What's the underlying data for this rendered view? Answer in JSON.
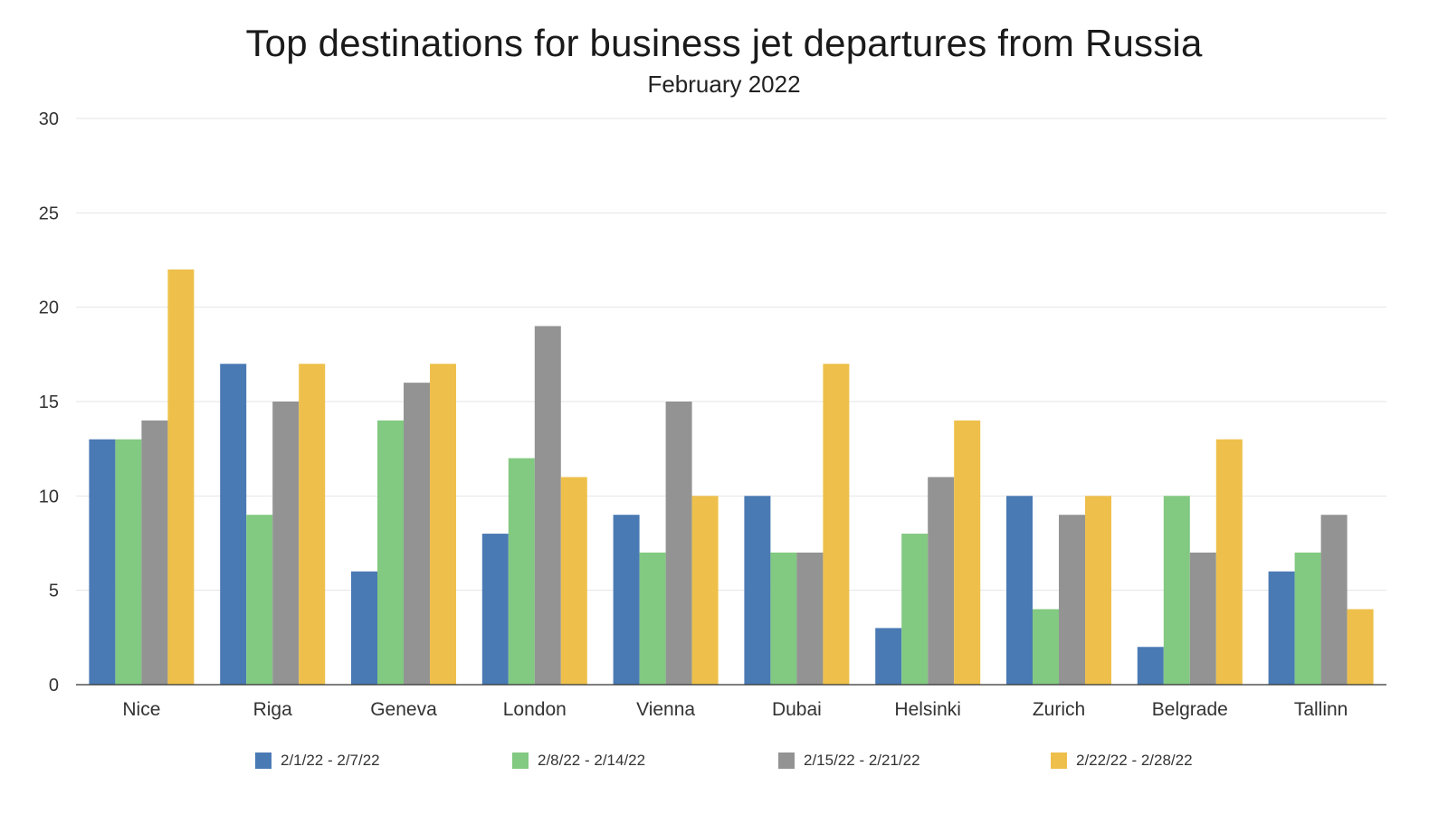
{
  "chart_data": {
    "type": "bar",
    "title": "Top destinations for business jet departures from Russia",
    "subtitle": "February 2022",
    "xlabel": "",
    "ylabel": "",
    "ylim": [
      0,
      30
    ],
    "yticks": [
      0,
      5,
      10,
      15,
      20,
      25,
      30
    ],
    "grid": true,
    "legend_position": "bottom",
    "categories": [
      "Nice",
      "Riga",
      "Geneva",
      "London",
      "Vienna",
      "Dubai",
      "Helsinki",
      "Zurich",
      "Belgrade",
      "Tallinn"
    ],
    "series": [
      {
        "name": "2/1/22 - 2/7/22",
        "color": "#4a7ab4",
        "values": [
          13,
          17,
          6,
          8,
          9,
          10,
          3,
          10,
          2,
          6
        ]
      },
      {
        "name": "2/8/22 - 2/14/22",
        "color": "#82c981",
        "values": [
          13,
          9,
          14,
          12,
          7,
          7,
          8,
          4,
          10,
          7
        ]
      },
      {
        "name": "2/15/22 - 2/21/22",
        "color": "#939393",
        "values": [
          14,
          15,
          16,
          19,
          15,
          7,
          11,
          9,
          7,
          9
        ]
      },
      {
        "name": "2/22/22 - 2/28/22",
        "color": "#eec04b",
        "values": [
          22,
          17,
          17,
          11,
          10,
          17,
          14,
          10,
          13,
          4
        ]
      }
    ]
  }
}
